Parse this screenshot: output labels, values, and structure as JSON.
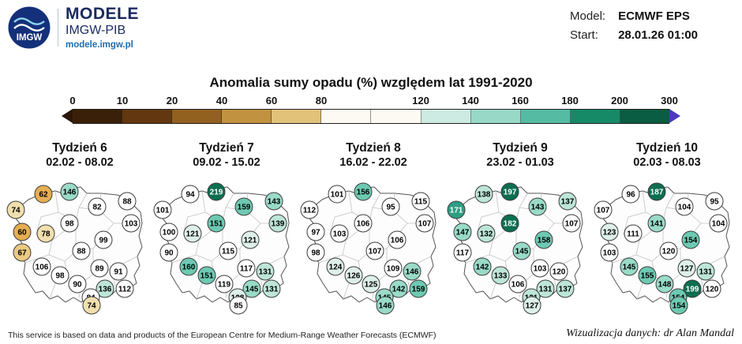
{
  "header": {
    "brand": "MODELE",
    "org": "IMGW-PIB",
    "site": "modele.imgw.pl",
    "logo_text": "IMGW",
    "model_label": "Model:",
    "model_value": "ECMWF EPS",
    "start_label": "Start:",
    "start_value": "28.01.26 01:00"
  },
  "title": "Anomalia sumy opadu (%) względem lat 1991-2020",
  "footer": {
    "left": "This service is based on data and products of the European Centre for Medium-Range Weather Forecasts (ECMWF)",
    "right": "Wizualizacja danych: dr Alan Mandal"
  },
  "colorbar": {
    "ticks": [
      "0",
      "10",
      "20",
      "40",
      "60",
      "80",
      "120",
      "140",
      "160",
      "180",
      "200",
      "300"
    ],
    "segment_colors": [
      "#3a2008",
      "#63370f",
      "#92601f",
      "#c1923f",
      "#e2c279",
      "#fcfaf3",
      "#fcfaf3",
      "#cdebe2",
      "#97d8c6",
      "#55bba3",
      "#168a66",
      "#0a5c42"
    ],
    "arrow_left_color": "#2a170a",
    "arrow_right_color": "#4c39c0"
  },
  "color_scale": [
    {
      "max": 65,
      "bg": "#e5ae52",
      "fg": "#000000"
    },
    {
      "max": 72,
      "bg": "#eac983",
      "fg": "#000000"
    },
    {
      "max": 80,
      "bg": "#f2dfae",
      "fg": "#000000"
    },
    {
      "max": 120,
      "bg": "#ffffff",
      "fg": "#000000"
    },
    {
      "max": 130,
      "bg": "#def0e9",
      "fg": "#000000"
    },
    {
      "max": 140,
      "bg": "#bde6d8",
      "fg": "#000000"
    },
    {
      "max": 150,
      "bg": "#99dbc8",
      "fg": "#000000"
    },
    {
      "max": 163,
      "bg": "#6ec9b2",
      "fg": "#000000"
    },
    {
      "max": 178,
      "bg": "#2d9f82",
      "fg": "#ffffff"
    },
    {
      "max": 230,
      "bg": "#0c6e50",
      "fg": "#ffffff"
    },
    {
      "max": 9999,
      "bg": "#4c39c0",
      "fg": "#ffffff"
    }
  ],
  "chart_data": {
    "type": "heatmap",
    "title": "Anomalia sumy opadu (%) względem lat 1991-2020",
    "legend_label_unit": "%",
    "legend_ticks": [
      0,
      10,
      20,
      40,
      60,
      80,
      120,
      140,
      160,
      180,
      200,
      300
    ],
    "weeks": [
      {
        "label": "Tydzień 6",
        "range": "02.02 - 08.02",
        "values": [
          62,
          146,
          88,
          74,
          82,
          98,
          103,
          60,
          78,
          99,
          67,
          88,
          106,
          98,
          89,
          91,
          90,
          136,
          112,
          84,
          74
        ]
      },
      {
        "label": "Tydzień 7",
        "range": "09.02 - 15.02",
        "values": [
          94,
          219,
          143,
          101,
          159,
          151,
          139,
          100,
          121,
          121,
          90,
          115,
          160,
          151,
          117,
          131,
          119,
          145,
          131,
          128,
          85
        ]
      },
      {
        "label": "Tydzień 8",
        "range": "16.02 - 22.02",
        "values": [
          101,
          156,
          115,
          112,
          95,
          106,
          107,
          97,
          103,
          106,
          98,
          107,
          124,
          126,
          109,
          146,
          125,
          142,
          159,
          145,
          146
        ]
      },
      {
        "label": "Tydzień 9",
        "range": "23.02 - 01.03",
        "values": [
          138,
          197,
          137,
          171,
          143,
          182,
          107,
          147,
          132,
          158,
          117,
          145,
          142,
          133,
          103,
          120,
          106,
          131,
          137,
          131,
          127
        ]
      },
      {
        "label": "Tydzień 10",
        "range": "02.03 - 08.03",
        "values": [
          96,
          187,
          95,
          107,
          104,
          141,
          104,
          123,
          111,
          154,
          103,
          120,
          145,
          155,
          127,
          131,
          148,
          199,
          120,
          154,
          154
        ]
      }
    ]
  }
}
